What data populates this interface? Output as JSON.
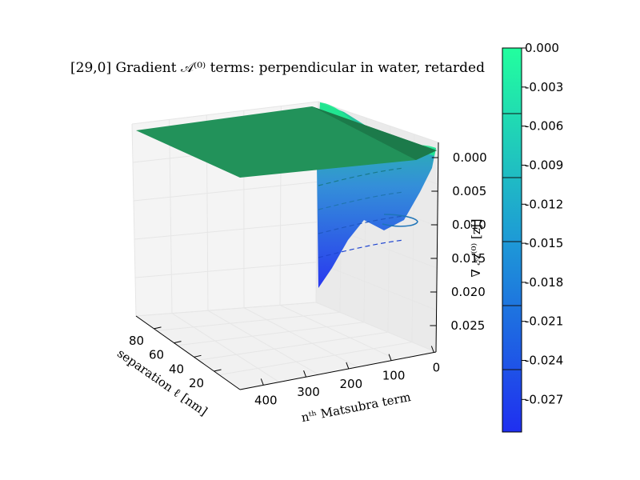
{
  "chart_data": {
    "type": "surface3d",
    "title": "[29,0] Gradient 𝒜⁽⁰⁾ terms: perpendicular in water, retarded",
    "xlabel": "nᵗʰ Matsubra term",
    "ylabel": "separation   ℓ [nm]",
    "zlabel": "∇ 𝒜⁽⁰⁾  [zJ]",
    "x_ticks": [
      "400",
      "300",
      "200",
      "100",
      "0"
    ],
    "y_ticks": [
      "80",
      "60",
      "40",
      "20"
    ],
    "z_ticks": [
      "0.000",
      "0.005",
      "0.010",
      "0.015",
      "0.020",
      "0.025"
    ],
    "xlim": [
      0,
      500
    ],
    "ylim": [
      0,
      100
    ],
    "zlim": [
      -0.029,
      0.002
    ],
    "colorbar": {
      "ticks": [
        "0.000",
        "-0.003",
        "-0.006",
        "-0.009",
        "-0.012",
        "-0.015",
        "-0.018",
        "-0.021",
        "-0.024",
        "-0.027"
      ],
      "range": [
        -0.0295,
        0.0
      ],
      "colors": [
        "#1f2ff0",
        "#00ffa0"
      ]
    },
    "surface_summary": {
      "plateau_value": 0.0,
      "minimum_value": -0.0255,
      "minimum_at_separation_nm": 10,
      "minimum_at_matsubara_n": 0
    }
  }
}
